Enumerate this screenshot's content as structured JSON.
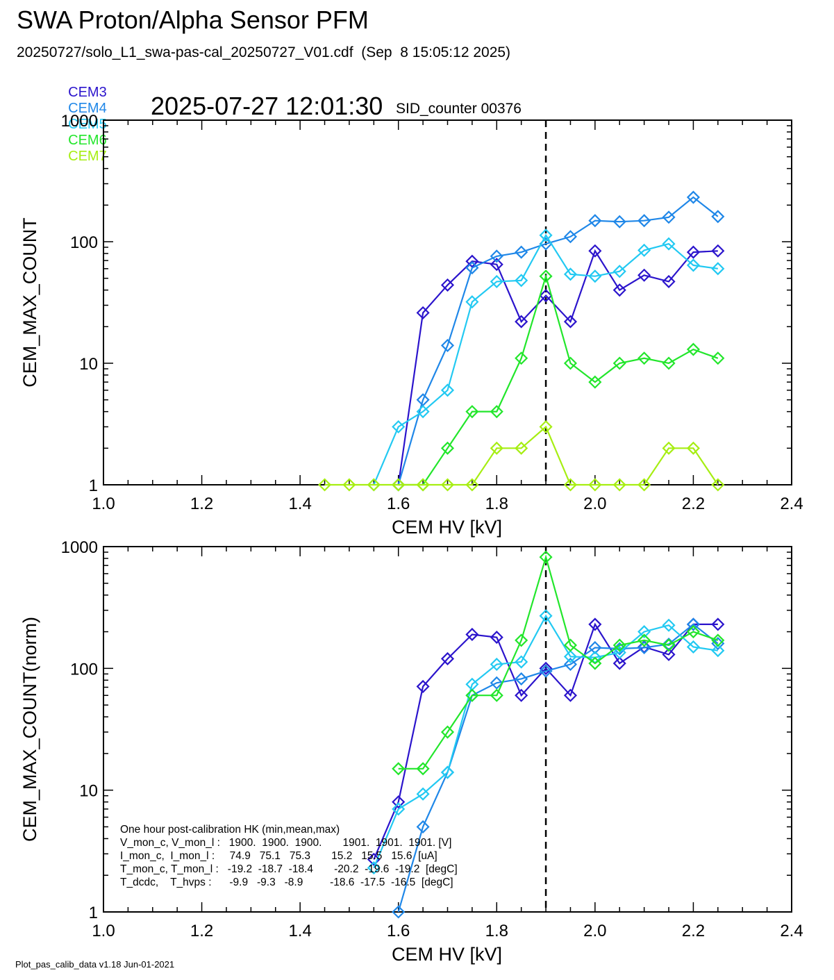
{
  "title": "SWA Proton/Alpha Sensor PFM",
  "subtitle": "20250727/solo_L1_swa-pas-cal_20250727_V01.cdf  (Sep  8 15:05:12 2025)",
  "timestamp": "2025-07-27 12:01:30",
  "sid_counter": "SID_counter 00376",
  "footer": "Plot_pas_calib_data v1.18 Jun-01-2021",
  "legend": [
    {
      "label": "CEM3",
      "color": "#2b14cc"
    },
    {
      "label": "CEM4",
      "color": "#1f87e8"
    },
    {
      "label": "CEM5",
      "color": "#22c9f2"
    },
    {
      "label": "CEM6",
      "color": "#22e62b"
    },
    {
      "label": "CEM7",
      "color": "#a6ee12"
    }
  ],
  "hk_box": {
    "lines": [
      "One hour post-calibration HK (min,mean,max)",
      "V_mon_c, V_mon_l :   1900.  1900.  1900.       1901.  1901.  1901. [V]",
      "I_mon_c,  I_mon_l :     74.9   75.1   75.3       15.2   15.5   15.6  [uA]",
      "T_mon_c, T_mon_l :   -19.2  -18.7  -18.4       -20.2  -19.6  -19.2  [degC]",
      "T_dcdc,    T_hvps :      -9.9   -9.3   -8.9         -18.6  -17.5  -16.5  [degC]"
    ]
  },
  "chart_data": [
    {
      "type": "line",
      "xlabel": "CEM HV [kV]",
      "ylabel": "CEM_MAX_COUNT",
      "xlim": [
        1.0,
        2.4
      ],
      "ylim": [
        1,
        1000
      ],
      "yscale": "log",
      "xticks": [
        "1.0",
        "1.2",
        "1.4",
        "1.6",
        "1.8",
        "2.0",
        "2.2",
        "2.4"
      ],
      "yticks": [
        "1",
        "10",
        "100",
        "1000"
      ],
      "vline": 1.9,
      "markers": "diamond",
      "series": [
        {
          "name": "CEM3",
          "color": "#2b14cc",
          "x": [
            1.6,
            1.65,
            1.7,
            1.75,
            1.8,
            1.85,
            1.9,
            1.95,
            2.0,
            2.05,
            2.1,
            2.15,
            2.2,
            2.25
          ],
          "y": [
            1,
            26,
            44,
            69,
            65,
            22,
            36,
            22,
            84,
            40,
            53,
            47,
            82,
            84
          ]
        },
        {
          "name": "CEM4",
          "color": "#1f87e8",
          "x": [
            1.6,
            1.65,
            1.7,
            1.75,
            1.8,
            1.85,
            1.9,
            1.95,
            2.0,
            2.05,
            2.1,
            2.15,
            2.2,
            2.25
          ],
          "y": [
            1,
            5,
            14,
            61,
            76,
            82,
            96,
            110,
            149,
            146,
            149,
            159,
            232,
            161
          ]
        },
        {
          "name": "CEM5",
          "color": "#22c9f2",
          "x": [
            1.55,
            1.6,
            1.65,
            1.7,
            1.75,
            1.8,
            1.85,
            1.9,
            1.95,
            2.0,
            2.05,
            2.1,
            2.15,
            2.2,
            2.25
          ],
          "y": [
            1,
            3,
            4,
            6,
            32,
            47,
            48,
            113,
            54,
            52,
            57,
            85,
            96,
            64,
            60
          ]
        },
        {
          "name": "CEM6",
          "color": "#22e62b",
          "x": [
            1.6,
            1.65,
            1.7,
            1.75,
            1.8,
            1.85,
            1.9,
            1.95,
            2.0,
            2.05,
            2.1,
            2.15,
            2.2,
            2.25
          ],
          "y": [
            1,
            1,
            2,
            4,
            4,
            11,
            52,
            10,
            7,
            10,
            11,
            10,
            13,
            11
          ]
        },
        {
          "name": "CEM7",
          "color": "#a6ee12",
          "x": [
            1.45,
            1.5,
            1.55,
            1.6,
            1.65,
            1.7,
            1.75,
            1.8,
            1.85,
            1.9,
            1.95,
            2.0,
            2.05,
            2.1,
            2.15,
            2.2,
            2.25
          ],
          "y": [
            1,
            1,
            1,
            1,
            1,
            1,
            1,
            2,
            2,
            3,
            1,
            1,
            1,
            1,
            2,
            2,
            1
          ]
        }
      ]
    },
    {
      "type": "line",
      "xlabel": "CEM HV [kV]",
      "ylabel": "CEM_MAX_COUNT(norm)",
      "xlim": [
        1.0,
        2.4
      ],
      "ylim": [
        1,
        1000
      ],
      "yscale": "log",
      "xticks": [
        "1.0",
        "1.2",
        "1.4",
        "1.6",
        "1.8",
        "2.0",
        "2.2",
        "2.4"
      ],
      "yticks": [
        "1",
        "10",
        "100",
        "1000"
      ],
      "vline": 1.9,
      "markers": "diamond",
      "series": [
        {
          "name": "CEM3",
          "color": "#2b14cc",
          "x": [
            1.55,
            1.6,
            1.65,
            1.7,
            1.75,
            1.8,
            1.85,
            1.9,
            1.95,
            2.0,
            2.05,
            2.1,
            2.15,
            2.2,
            2.25
          ],
          "y": [
            2.7,
            8,
            71,
            120,
            190,
            180,
            60,
            100,
            60,
            230,
            110,
            150,
            130,
            230,
            230
          ]
        },
        {
          "name": "CEM4",
          "color": "#1f87e8",
          "x": [
            1.6,
            1.65,
            1.7,
            1.75,
            1.8,
            1.85,
            1.9,
            1.95,
            2.0,
            2.05,
            2.1,
            2.15,
            2.2,
            2.25
          ],
          "y": [
            1,
            5,
            14,
            60,
            76,
            82,
            95,
            108,
            148,
            145,
            148,
            158,
            230,
            160
          ]
        },
        {
          "name": "CEM5",
          "color": "#22c9f2",
          "x": [
            1.55,
            1.6,
            1.65,
            1.7,
            1.75,
            1.8,
            1.85,
            1.9,
            1.95,
            2.0,
            2.05,
            2.1,
            2.15,
            2.2,
            2.25
          ],
          "y": [
            2.3,
            7,
            9.3,
            14,
            74,
            108,
            113,
            270,
            125,
            123,
            135,
            200,
            226,
            150,
            140
          ]
        },
        {
          "name": "CEM6",
          "color": "#22e62b",
          "x": [
            1.6,
            1.65,
            1.7,
            1.75,
            1.8,
            1.85,
            1.9,
            1.95,
            2.0,
            2.05,
            2.1,
            2.15,
            2.2,
            2.25
          ],
          "y": [
            15,
            15,
            30,
            60,
            60,
            170,
            820,
            155,
            110,
            155,
            170,
            155,
            200,
            170
          ]
        }
      ]
    }
  ]
}
